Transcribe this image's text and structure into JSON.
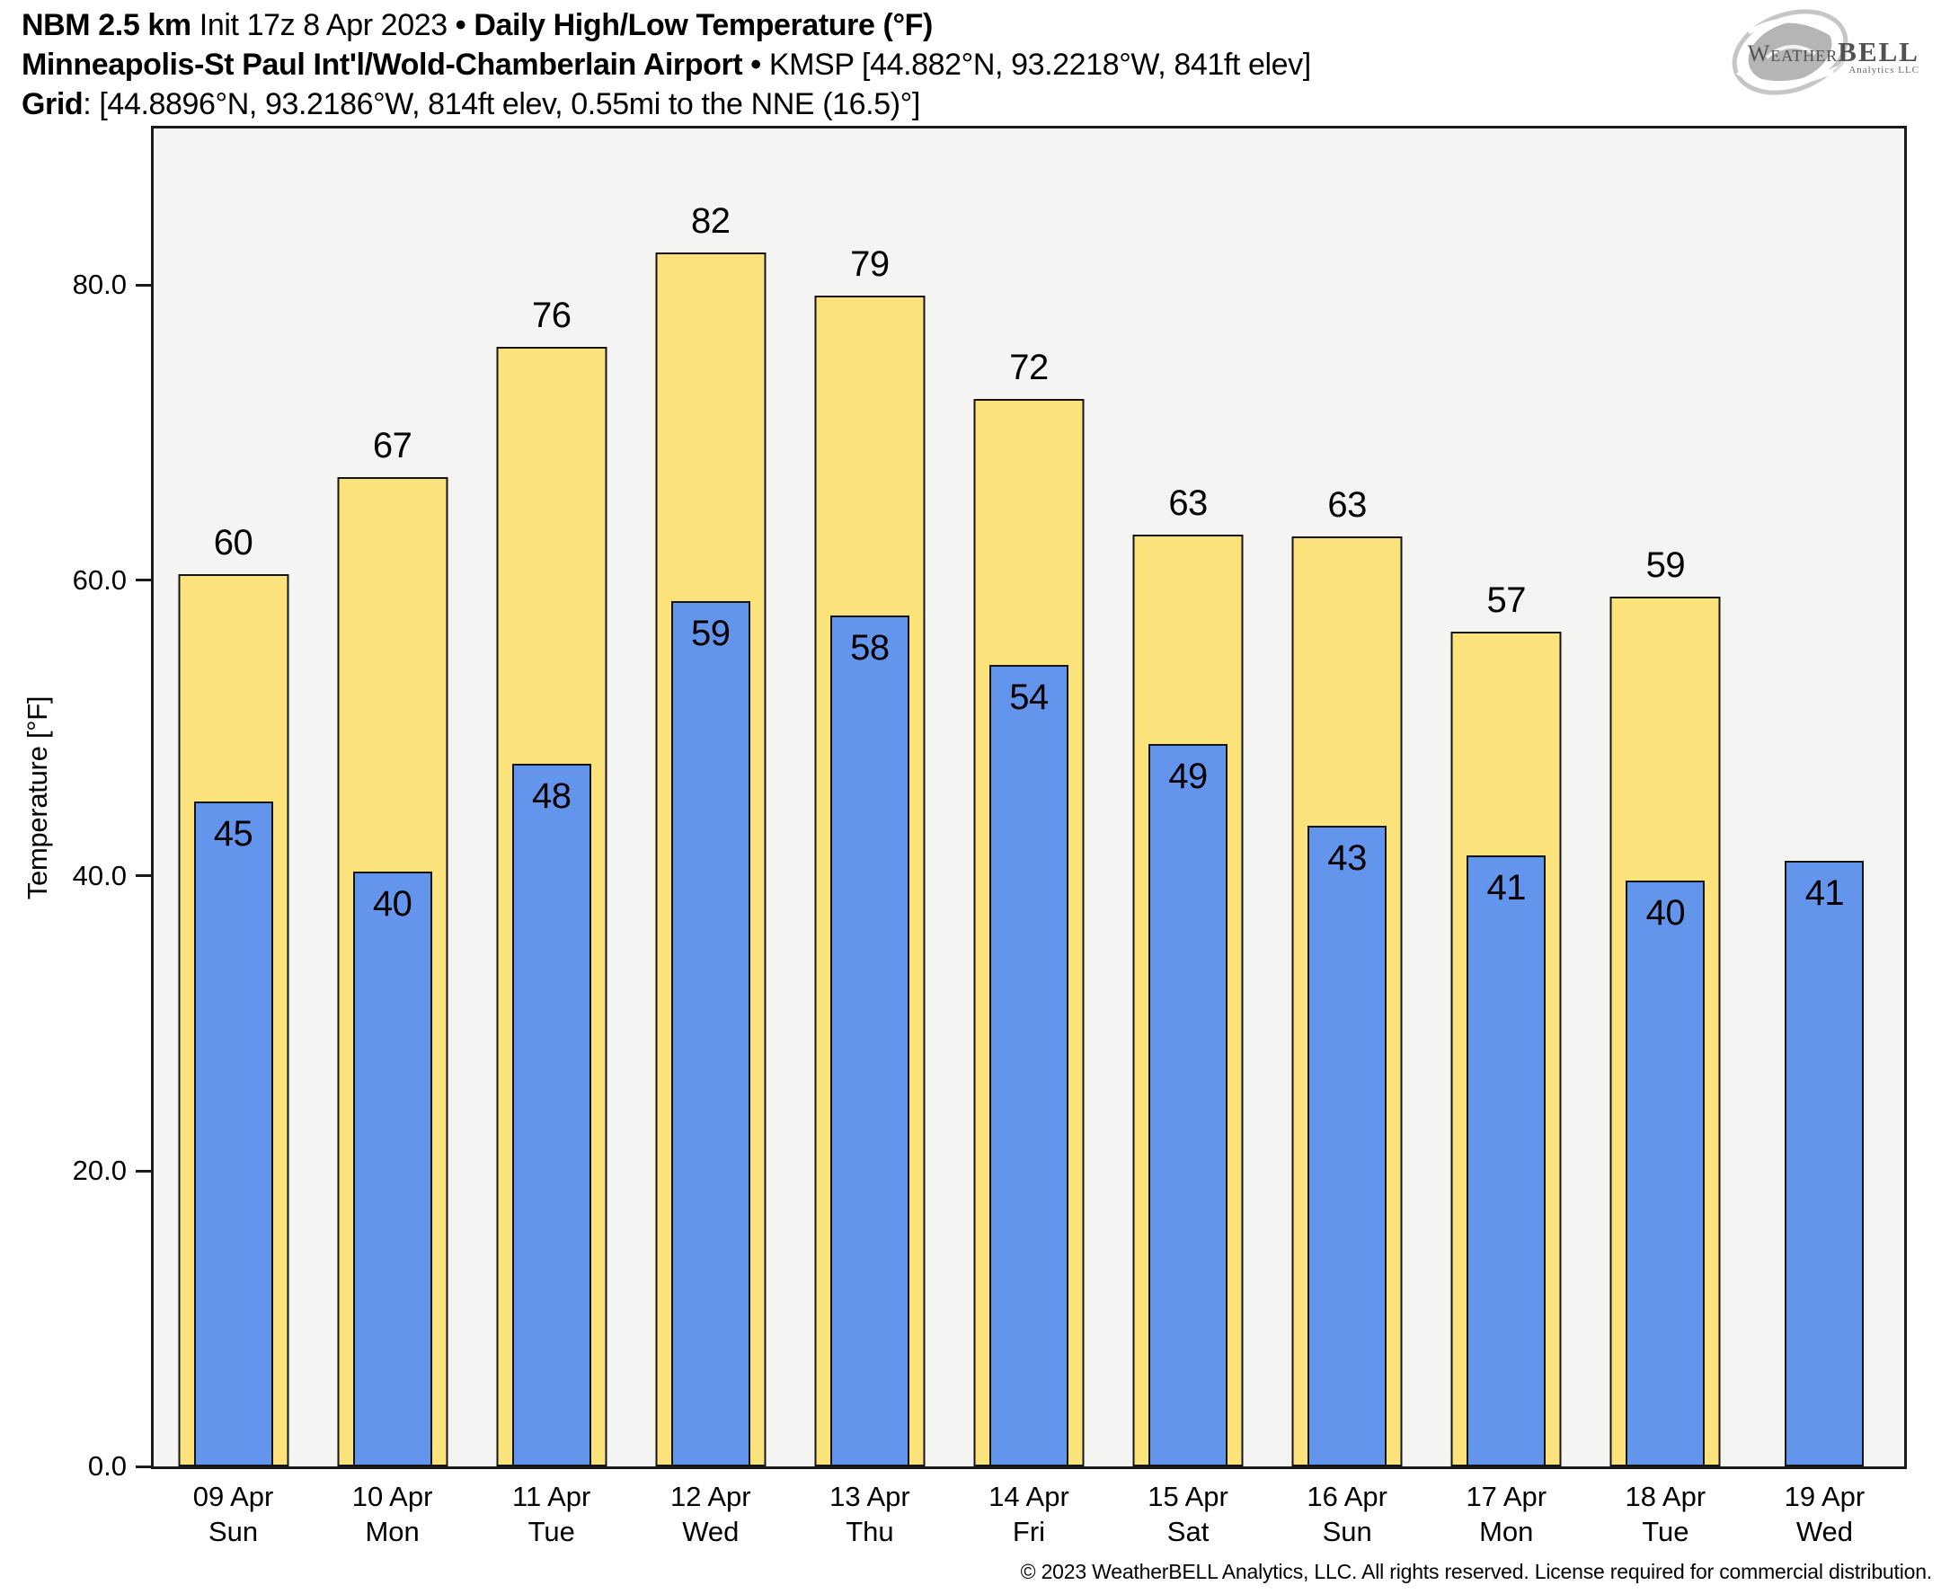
{
  "header": {
    "line1": {
      "model": "NBM 2.5 km",
      "init": "Init 17z 8 Apr 2023",
      "separator": "•",
      "title": "Daily High/Low Temperature (°F)"
    },
    "line2": {
      "station": "Minneapolis-St Paul Int'l/Wold-Chamberlain Airport",
      "separator": "•",
      "details": "KMSP [44.882°N, 93.2218°W, 841ft elev]"
    },
    "line3": {
      "label": "Grid",
      "details": ": [44.8896°N, 93.2186°W, 814ft elev, 0.55mi to the NNE (16.5)°]"
    }
  },
  "logo": {
    "word_weather": "Weather",
    "word_bell": "BELL",
    "subtitle": "Analytics LLC",
    "icon": "hurricane-swirl-icon",
    "swirl_color": "#b5b5b5"
  },
  "chart_data": {
    "type": "bar",
    "title": "Daily High/Low Temperature (°F)",
    "ylabel": "Temperature [°F]",
    "ylim": [
      0,
      90.6
    ],
    "grid": false,
    "legend": "none",
    "plot_background": "#F4F4F2",
    "yticks": [
      {
        "value": 0,
        "label": "0.0"
      },
      {
        "value": 20,
        "label": "20.0"
      },
      {
        "value": 40,
        "label": "40.0"
      },
      {
        "value": 60,
        "label": "60.0"
      },
      {
        "value": 80,
        "label": "80.0"
      }
    ],
    "categories": [
      {
        "date": "09 Apr",
        "weekday": "Sun"
      },
      {
        "date": "10 Apr",
        "weekday": "Mon"
      },
      {
        "date": "11 Apr",
        "weekday": "Tue"
      },
      {
        "date": "12 Apr",
        "weekday": "Wed"
      },
      {
        "date": "13 Apr",
        "weekday": "Thu"
      },
      {
        "date": "14 Apr",
        "weekday": "Fri"
      },
      {
        "date": "15 Apr",
        "weekday": "Sat"
      },
      {
        "date": "16 Apr",
        "weekday": "Sun"
      },
      {
        "date": "17 Apr",
        "weekday": "Mon"
      },
      {
        "date": "18 Apr",
        "weekday": "Tue"
      },
      {
        "date": "19 Apr",
        "weekday": "Wed"
      }
    ],
    "series": [
      {
        "name": "Daily High",
        "color": "#FBE27B",
        "edge_color": "#141414",
        "values": [
          60,
          67,
          76,
          82,
          79,
          72,
          63,
          63,
          57,
          59,
          null
        ],
        "bar_heights": [
          60.4,
          67.0,
          75.8,
          82.2,
          79.3,
          72.3,
          63.1,
          63.0,
          56.5,
          58.9,
          null
        ]
      },
      {
        "name": "Daily Low",
        "color": "#6495EC",
        "edge_color": "#141414",
        "values": [
          45,
          40,
          48,
          59,
          58,
          54,
          49,
          43,
          41,
          40,
          41
        ],
        "bar_heights": [
          45.0,
          40.3,
          47.6,
          58.6,
          57.6,
          54.3,
          48.9,
          43.4,
          41.4,
          39.7,
          41.0
        ]
      }
    ]
  },
  "footer": {
    "copyright": "© 2023 WeatherBELL Analytics, LLC. All rights reserved. License required for commercial distribution."
  }
}
